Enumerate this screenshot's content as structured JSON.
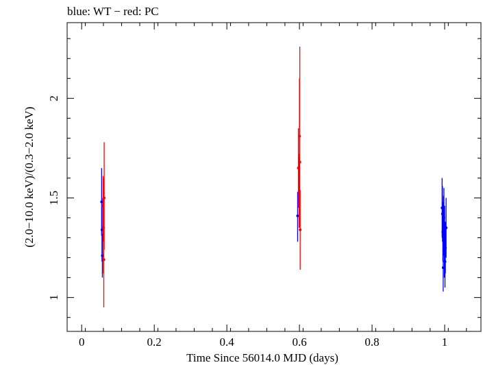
{
  "chart_data": {
    "type": "scatter",
    "title": "blue: WT − red: PC",
    "xlabel": "Time Since 56014.0 MJD (days)",
    "ylabel": "(2.0−10.0 keV)/(0.3−2.0 keV)",
    "xlim": [
      -0.04,
      1.1
    ],
    "ylim": [
      0.83,
      2.38
    ],
    "xticks": [
      0,
      0.2,
      0.4,
      0.6,
      0.8,
      1
    ],
    "xtick_labels": [
      "0",
      "0.2",
      "0.4",
      "0.6",
      "0.8",
      "1"
    ],
    "yticks": [
      1,
      1.5,
      2
    ],
    "ytick_labels": [
      "1",
      "1.5",
      "2"
    ],
    "grid": false,
    "series": [
      {
        "mode": "WT",
        "color": "#0000ff",
        "points": [
          {
            "x": 0.055,
            "y": 1.48,
            "ylo": 1.31,
            "yhi": 1.65
          },
          {
            "x": 0.056,
            "y": 1.34,
            "ylo": 1.18,
            "yhi": 1.5
          },
          {
            "x": 0.057,
            "y": 1.21,
            "ylo": 1.1,
            "yhi": 1.32
          },
          {
            "x": 0.595,
            "y": 1.41,
            "ylo": 1.28,
            "yhi": 1.53
          },
          {
            "x": 0.993,
            "y": 1.45,
            "ylo": 1.3,
            "yhi": 1.6
          },
          {
            "x": 0.994,
            "y": 1.42,
            "ylo": 1.28,
            "yhi": 1.56
          },
          {
            "x": 0.995,
            "y": 1.33,
            "ylo": 1.18,
            "yhi": 1.48
          },
          {
            "x": 0.996,
            "y": 1.15,
            "ylo": 1.03,
            "yhi": 1.27
          },
          {
            "x": 0.997,
            "y": 1.36,
            "ylo": 1.21,
            "yhi": 1.51
          },
          {
            "x": 0.998,
            "y": 1.4,
            "ylo": 1.26,
            "yhi": 1.55
          },
          {
            "x": 0.999,
            "y": 1.22,
            "ylo": 1.1,
            "yhi": 1.34
          },
          {
            "x": 1.0,
            "y": 1.3,
            "ylo": 1.15,
            "yhi": 1.46
          },
          {
            "x": 1.001,
            "y": 1.18,
            "ylo": 1.05,
            "yhi": 1.31
          },
          {
            "x": 1.002,
            "y": 1.25,
            "ylo": 1.12,
            "yhi": 1.38
          },
          {
            "x": 1.004,
            "y": 1.35,
            "ylo": 1.2,
            "yhi": 1.5
          }
        ]
      },
      {
        "mode": "PC",
        "color": "#ff0000",
        "points": [
          {
            "x": 0.059,
            "y": 1.46,
            "ylo": 1.28,
            "yhi": 1.61
          },
          {
            "x": 0.06,
            "y": 1.35,
            "ylo": 1.12,
            "yhi": 1.6
          },
          {
            "x": 0.061,
            "y": 1.19,
            "ylo": 0.95,
            "yhi": 1.44
          },
          {
            "x": 0.062,
            "y": 1.5,
            "ylo": 1.24,
            "yhi": 1.78
          },
          {
            "x": 0.597,
            "y": 1.65,
            "ylo": 1.45,
            "yhi": 1.85
          },
          {
            "x": 0.599,
            "y": 1.53,
            "ylo": 1.35,
            "yhi": 1.72
          },
          {
            "x": 0.6,
            "y": 1.81,
            "ylo": 1.52,
            "yhi": 2.1
          },
          {
            "x": 0.601,
            "y": 1.68,
            "ylo": 1.35,
            "yhi": 2.26
          },
          {
            "x": 0.602,
            "y": 1.34,
            "ylo": 1.14,
            "yhi": 1.54
          }
        ]
      }
    ]
  }
}
